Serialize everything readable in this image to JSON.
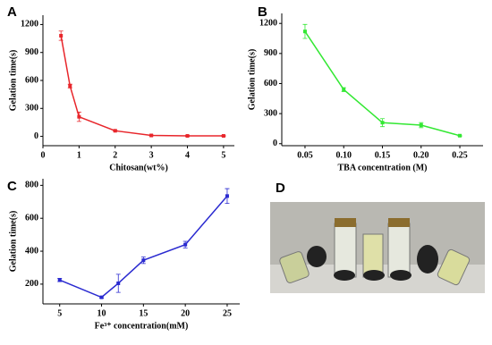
{
  "chart_data": [
    {
      "type": "line",
      "panel": "A",
      "x_label": "Chitosan(wt%)",
      "y_label": "Gelation time(s)",
      "color": "#e8262b",
      "x": [
        0.5,
        0.75,
        1,
        2,
        3,
        4,
        5
      ],
      "values": [
        1080,
        540,
        210,
        60,
        10,
        5,
        5
      ],
      "errors": [
        50,
        20,
        50,
        5,
        5,
        5,
        5
      ],
      "xlim": [
        0,
        5.3
      ],
      "xticks": [
        0,
        1,
        2,
        3,
        4,
        5
      ],
      "ylim": [
        -100,
        1300
      ],
      "yticks": [
        0,
        300,
        600,
        900,
        1200
      ]
    },
    {
      "type": "line",
      "panel": "B",
      "x_label": "TBA concentration (M)",
      "y_label": "Gelation time(s)",
      "color": "#33e833",
      "x": [
        0.05,
        0.1,
        0.15,
        0.2,
        0.25
      ],
      "values": [
        1120,
        540,
        210,
        185,
        80
      ],
      "errors": [
        70,
        20,
        40,
        25,
        5
      ],
      "xlim": [
        0.02,
        0.28
      ],
      "xticks": [
        {
          "value": 0.05,
          "label": "0.05"
        },
        {
          "value": 0.1,
          "label": "0.10"
        },
        {
          "value": 0.15,
          "label": "0.15"
        },
        {
          "value": 0.2,
          "label": "0.20"
        },
        {
          "value": 0.25,
          "label": "0.25"
        }
      ],
      "ylim": [
        -20,
        1300
      ],
      "yticks": [
        0,
        300,
        600,
        900,
        1200
      ]
    },
    {
      "type": "line",
      "panel": "C",
      "x_label": "Fe³⁺ concentration(mM)",
      "y_label": "Gelation time(s)",
      "color": "#2a2ad0",
      "x": [
        5,
        10,
        12,
        15,
        20,
        25
      ],
      "values": [
        225,
        120,
        205,
        345,
        440,
        735
      ],
      "errors": [
        10,
        5,
        55,
        20,
        20,
        45
      ],
      "xlim": [
        3,
        26.5
      ],
      "xticks": [
        5,
        10,
        15,
        20,
        25
      ],
      "ylim": [
        80,
        840
      ],
      "yticks": [
        200,
        400,
        600,
        800
      ]
    }
  ],
  "photo": {
    "panel": "D"
  }
}
